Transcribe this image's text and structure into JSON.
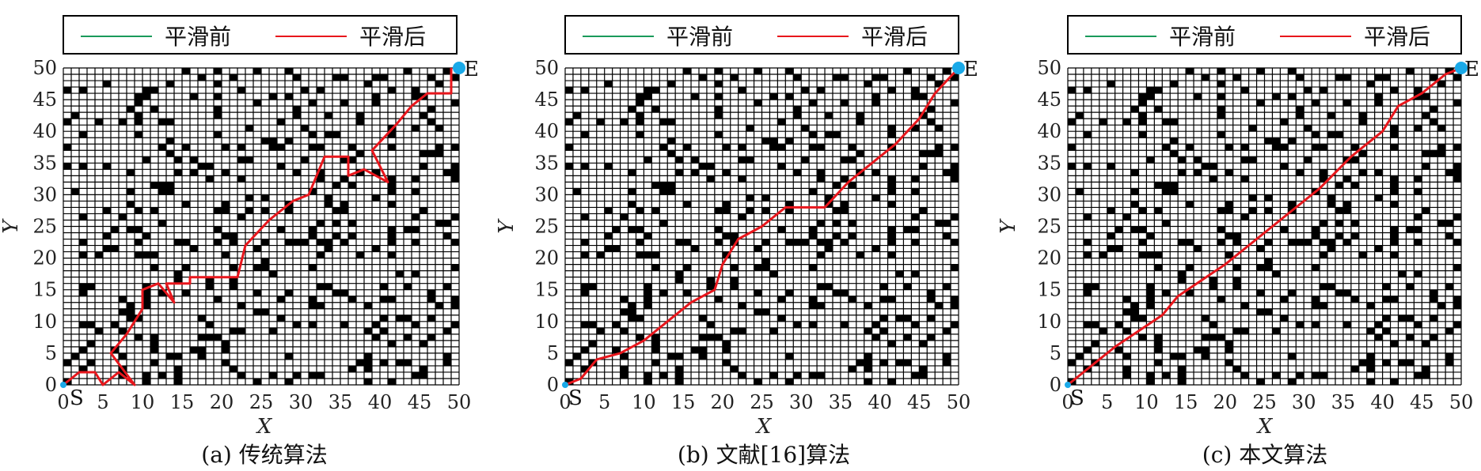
{
  "legend": {
    "before": "平滑前",
    "after": "平滑后",
    "before_color": "#1a9a5a",
    "after_color": "#e8161c"
  },
  "endpoint_color": "#1aa9e8",
  "obstacle_color": "#000000",
  "grid_line_color": "#000000",
  "chart_data": [
    {
      "type": "grid-path",
      "caption": "(a) 传统算法",
      "xlabel": "X",
      "ylabel": "Y",
      "xlim": [
        0,
        50
      ],
      "ylim": [
        0,
        50
      ],
      "xticks": [
        0,
        5,
        10,
        15,
        20,
        25,
        30,
        35,
        40,
        45,
        50
      ],
      "yticks": [
        0,
        5,
        10,
        15,
        20,
        25,
        30,
        35,
        40,
        45,
        50
      ],
      "start": {
        "label": "S",
        "x": 0,
        "y": 0
      },
      "end": {
        "label": "E",
        "x": 50,
        "y": 50
      },
      "series": [
        {
          "name": "平滑前",
          "x": [
            0,
            2,
            4,
            5,
            7,
            9,
            6,
            8,
            10,
            10,
            12,
            14,
            13,
            16,
            16,
            19,
            22,
            23,
            26,
            29,
            31,
            33,
            36,
            36,
            38,
            41,
            39,
            42,
            44,
            46,
            49,
            49
          ],
          "y": [
            0,
            2,
            2,
            0,
            2,
            0,
            5,
            8,
            12,
            15,
            16,
            13,
            16,
            16,
            17,
            17,
            17,
            22,
            26,
            29,
            30,
            36,
            36,
            33,
            34,
            32,
            37,
            41,
            44,
            46,
            46,
            50
          ]
        },
        {
          "name": "平滑后",
          "x": [
            0,
            2,
            4,
            5,
            7,
            9,
            6,
            8,
            10,
            10,
            12,
            14,
            13,
            16,
            16,
            19,
            22,
            23,
            26,
            29,
            31,
            33,
            36,
            36,
            38,
            41,
            39,
            42,
            44,
            46,
            49,
            49
          ],
          "y": [
            0,
            2,
            2,
            0,
            2,
            0,
            5,
            8,
            12,
            15,
            16,
            13,
            16,
            16,
            17,
            17,
            17,
            22,
            26,
            29,
            30,
            36,
            36,
            33,
            34,
            32,
            37,
            41,
            44,
            46,
            46,
            50
          ]
        }
      ]
    },
    {
      "type": "grid-path",
      "caption": "(b) 文献[16]算法",
      "xlabel": "X",
      "ylabel": "Y",
      "xlim": [
        0,
        50
      ],
      "ylim": [
        0,
        50
      ],
      "xticks": [
        0,
        5,
        10,
        15,
        20,
        25,
        30,
        35,
        40,
        45,
        50
      ],
      "yticks": [
        0,
        5,
        10,
        15,
        20,
        25,
        30,
        35,
        40,
        45,
        50
      ],
      "start": {
        "label": "S",
        "x": 0,
        "y": 0
      },
      "end": {
        "label": "E",
        "x": 50,
        "y": 50
      },
      "series": [
        {
          "name": "平滑前",
          "x": [
            0,
            2,
            4,
            7,
            10,
            13,
            16,
            19,
            20,
            22,
            25,
            28,
            31,
            33,
            36,
            38,
            42,
            45,
            47,
            50
          ],
          "y": [
            0,
            1,
            4,
            5,
            7,
            10,
            13,
            15,
            19,
            23,
            25,
            28,
            28,
            28,
            32,
            34,
            38,
            42,
            46,
            50
          ]
        },
        {
          "name": "平滑后",
          "x": [
            0,
            2,
            4,
            7,
            10,
            13,
            16,
            19,
            20,
            22,
            25,
            28,
            31,
            33,
            36,
            38,
            42,
            45,
            47,
            50
          ],
          "y": [
            0,
            1,
            4,
            5,
            7,
            10,
            13,
            15,
            19,
            23,
            25,
            28,
            28,
            28,
            32,
            34,
            38,
            42,
            46,
            50
          ]
        }
      ]
    },
    {
      "type": "grid-path",
      "caption": "(c) 本文算法",
      "xlabel": "X",
      "ylabel": "Y",
      "xlim": [
        0,
        50
      ],
      "ylim": [
        0,
        50
      ],
      "xticks": [
        0,
        5,
        10,
        15,
        20,
        25,
        30,
        35,
        40,
        45,
        50
      ],
      "yticks": [
        0,
        5,
        10,
        15,
        20,
        25,
        30,
        35,
        40,
        45,
        50
      ],
      "start": {
        "label": "S",
        "x": 0,
        "y": 0
      },
      "end": {
        "label": "E",
        "x": 50,
        "y": 50
      },
      "series": [
        {
          "name": "平滑前",
          "x": [
            0,
            6,
            12,
            14,
            20,
            26,
            32,
            36,
            38,
            40,
            42,
            45,
            48,
            50
          ],
          "y": [
            0,
            6,
            11,
            14,
            19,
            25,
            31,
            36,
            38,
            40,
            44,
            46,
            49,
            50
          ]
        },
        {
          "name": "平滑后",
          "x": [
            0,
            6,
            12,
            14,
            20,
            26,
            32,
            36,
            38,
            40,
            42,
            45,
            48,
            50
          ],
          "y": [
            0,
            6,
            11,
            14,
            19,
            25,
            31,
            36,
            38,
            40,
            44,
            46,
            49,
            50
          ]
        }
      ]
    }
  ]
}
